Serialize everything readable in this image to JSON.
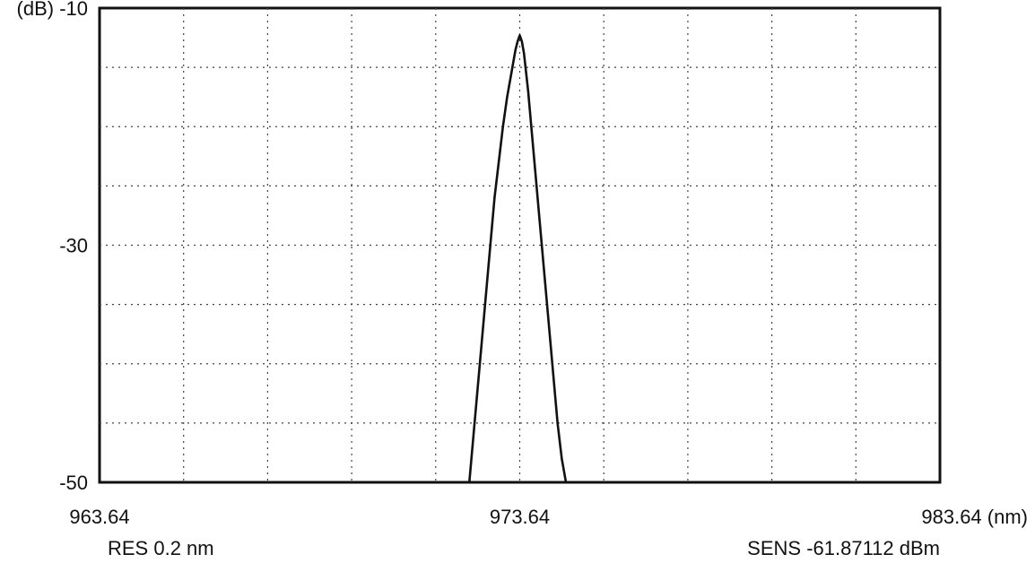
{
  "chart_data": {
    "type": "line",
    "ylabel": "(dB)",
    "xunit": "(nm)",
    "xlim": [
      963.64,
      983.64
    ],
    "ylim": [
      -50,
      -10
    ],
    "ytick_labels": [
      {
        "value": -10,
        "label": "(dB) -10"
      },
      {
        "value": -30,
        "label": "-30"
      },
      {
        "value": -50,
        "label": "-50"
      }
    ],
    "xtick_labels": [
      {
        "value": 963.64,
        "label": "963.64"
      },
      {
        "value": 973.64,
        "label": "973.64"
      },
      {
        "value": 983.64,
        "label": "983.64 (nm)"
      }
    ],
    "grid": true,
    "grid_divisions": {
      "x": 10,
      "y": 8
    },
    "series": [
      {
        "x": [
          972.44,
          972.54,
          972.64,
          972.74,
          972.84,
          972.94,
          973.04,
          973.14,
          973.24,
          973.34,
          973.44,
          973.49,
          973.54,
          973.59,
          973.64,
          973.69,
          973.74,
          973.84,
          973.94,
          974.04,
          974.14,
          974.24,
          974.34,
          974.44,
          974.54,
          974.64,
          974.74
        ],
        "y": [
          -50,
          -46,
          -42,
          -38,
          -34,
          -30,
          -26,
          -23,
          -20,
          -17.5,
          -15.5,
          -14.5,
          -13.5,
          -12.8,
          -12.3,
          -12.8,
          -13.8,
          -17,
          -21,
          -25,
          -29,
          -33,
          -37,
          -41,
          -45,
          -48,
          -50
        ],
        "color": "#111111"
      }
    ],
    "annotations": [
      {
        "position": "bottom-left",
        "text": "RES 0.2 nm"
      },
      {
        "position": "bottom-right",
        "text": "SENS -61.87112 dBm"
      }
    ]
  }
}
